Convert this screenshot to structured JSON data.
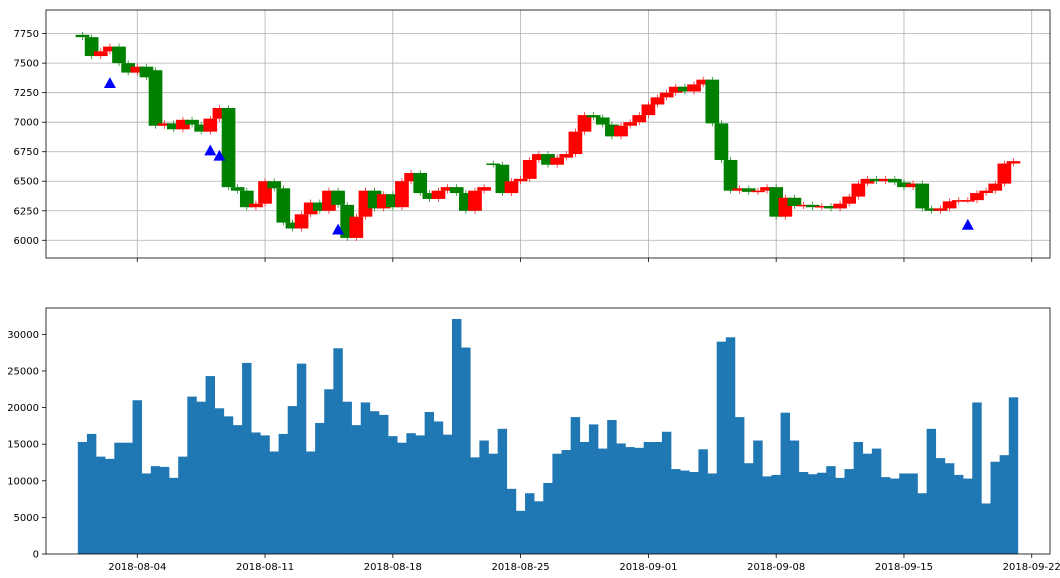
{
  "chart_data": [
    {
      "type": "candlestick",
      "title": "",
      "xlabel": "",
      "ylabel": "",
      "x_start": "2018-08-01",
      "x_end": "2018-09-21",
      "xlim": [
        "2018-07-30",
        "2018-09-23"
      ],
      "ylim": [
        5850,
        7950
      ],
      "yticks": [
        6000,
        6250,
        6500,
        6750,
        7000,
        7250,
        7500,
        7750
      ],
      "xticks": [
        "2018-08-04",
        "2018-08-11",
        "2018-08-18",
        "2018-08-25",
        "2018-09-01",
        "2018-09-08",
        "2018-09-15",
        "2018-09-22"
      ],
      "grid": true,
      "up_color": "#ff0000",
      "down_color": "#008000",
      "close": [
        7720,
        7560,
        7600,
        7640,
        7500,
        7420,
        7470,
        7380,
        6970,
        6990,
        6940,
        7020,
        6980,
        6920,
        7030,
        7120,
        6450,
        6420,
        6280,
        6310,
        6500,
        6440,
        6150,
        6100,
        6220,
        6320,
        6250,
        6420,
        6300,
        6020,
        6200,
        6420,
        6270,
        6390,
        6280,
        6500,
        6570,
        6400,
        6350,
        6420,
        6450,
        6400,
        6250,
        6420,
        6450,
        6640,
        6400,
        6500,
        6520,
        6680,
        6730,
        6640,
        6700,
        6730,
        6920,
        7060,
        7040,
        6980,
        6880,
        6970,
        7000,
        7060,
        7150,
        7210,
        7250,
        7300,
        7260,
        7320,
        7360,
        6990,
        6680,
        6420,
        6440,
        6410,
        6420,
        6450,
        6200,
        6360,
        6290,
        6300,
        6280,
        6290,
        6270,
        6310,
        6370,
        6480,
        6520,
        6500,
        6520,
        6490,
        6450,
        6480,
        6270,
        6250,
        6270,
        6330,
        6340,
        6340,
        6400,
        6420,
        6480,
        6650,
        6670
      ],
      "open": [
        7740,
        7720,
        7560,
        7600,
        7640,
        7500,
        7420,
        7470,
        7440,
        6970,
        6990,
        6940,
        7020,
        6980,
        6920,
        7030,
        7120,
        6450,
        6420,
        6280,
        6310,
        6500,
        6440,
        6150,
        6100,
        6220,
        6320,
        6250,
        6420,
        6300,
        6020,
        6200,
        6420,
        6270,
        6390,
        6280,
        6500,
        6570,
        6400,
        6350,
        6420,
        6450,
        6400,
        6250,
        6420,
        6650,
        6640,
        6400,
        6500,
        6520,
        6680,
        6730,
        6640,
        6700,
        6730,
        6920,
        7060,
        7040,
        6980,
        6880,
        6970,
        7000,
        7060,
        7150,
        7210,
        7250,
        7300,
        7260,
        7320,
        7360,
        6990,
        6680,
        6420,
        6440,
        6410,
        6420,
        6450,
        6200,
        6360,
        6290,
        6300,
        6280,
        6290,
        6270,
        6310,
        6370,
        6480,
        6520,
        6500,
        6520,
        6490,
        6450,
        6480,
        6270,
        6250,
        6270,
        6330,
        6340,
        6340,
        6400,
        6420,
        6480,
        6650
      ],
      "markers": {
        "shape": "triangle-up",
        "color": "#0000ff",
        "points": [
          {
            "x_index": 3,
            "y": 7330
          },
          {
            "x_index": 14,
            "y": 6760
          },
          {
            "x_index": 15,
            "y": 6715
          },
          {
            "x_index": 28,
            "y": 6090
          },
          {
            "x_index": 97,
            "y": 6130
          }
        ]
      }
    },
    {
      "type": "bar",
      "title": "",
      "xlabel": "",
      "ylabel": "",
      "color": "#1f77b4",
      "ylim": [
        0,
        33600
      ],
      "yticks": [
        0,
        5000,
        10000,
        15000,
        20000,
        25000,
        30000
      ],
      "xticks": [
        "2018-08-04",
        "2018-08-11",
        "2018-08-18",
        "2018-08-25",
        "2018-09-01",
        "2018-09-08",
        "2018-09-15",
        "2018-09-22"
      ],
      "grid": false,
      "values": [
        15300,
        16400,
        13300,
        13000,
        15200,
        15200,
        21000,
        11000,
        12000,
        11900,
        10400,
        13300,
        21500,
        20800,
        24300,
        19900,
        18800,
        17600,
        26100,
        16600,
        16200,
        14000,
        16400,
        20200,
        26000,
        14000,
        17900,
        22500,
        28100,
        20800,
        17600,
        20700,
        19500,
        19000,
        16100,
        15200,
        16500,
        16200,
        19400,
        18100,
        16300,
        32100,
        28200,
        13200,
        15500,
        13700,
        17100,
        8900,
        5900,
        8300,
        7200,
        9700,
        13700,
        14200,
        18700,
        15300,
        17700,
        14400,
        18300,
        15100,
        14600,
        14500,
        15300,
        15300,
        16700,
        11600,
        11400,
        11200,
        14300,
        11000,
        29000,
        29600,
        18700,
        12400,
        15500,
        10600,
        10800,
        19300,
        15500,
        11200,
        10900,
        11100,
        12000,
        10400,
        11600,
        15300,
        13700,
        14400,
        10500,
        10300,
        11000,
        11000,
        8300,
        17100,
        13100,
        12400,
        10800,
        10300,
        20700,
        6900,
        12600,
        13500,
        21400
      ]
    }
  ]
}
